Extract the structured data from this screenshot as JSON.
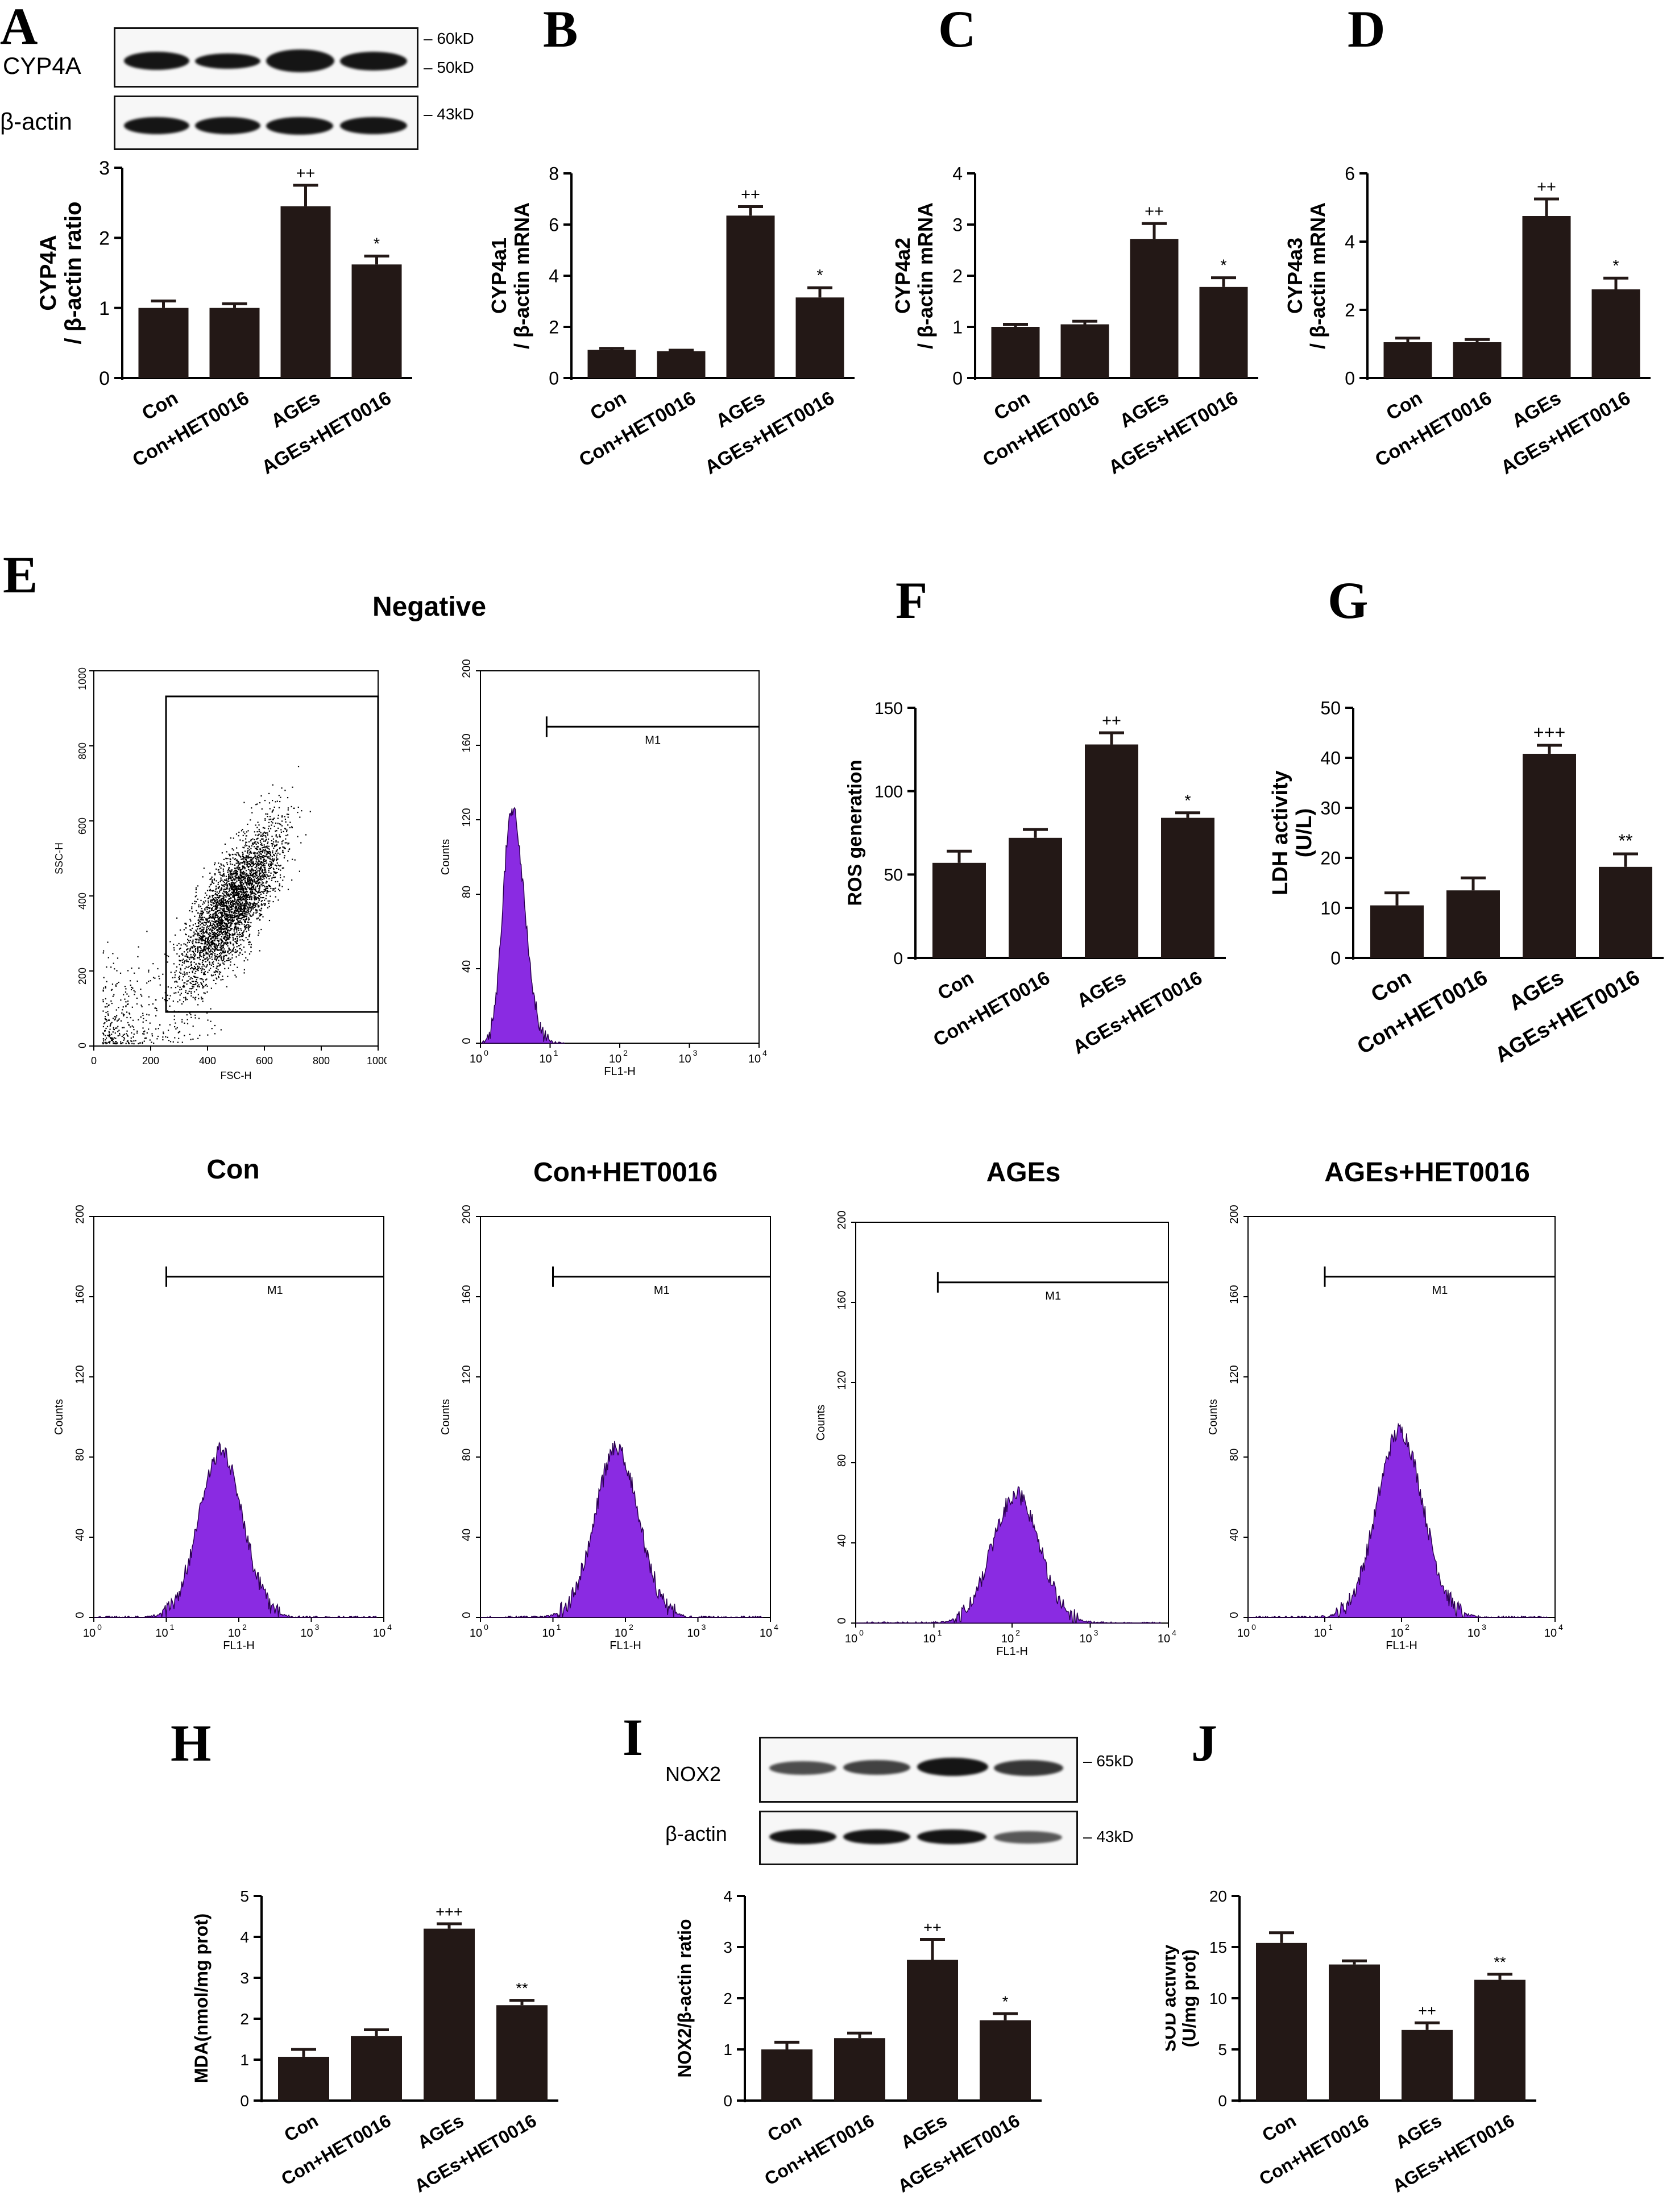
{
  "groups": [
    "Con",
    "Con+HET0016",
    "AGEs",
    "AGEs+HET0016"
  ],
  "letters": {
    "A": "A",
    "B": "B",
    "C": "C",
    "D": "D",
    "E": "E",
    "F": "F",
    "G": "G",
    "H": "H",
    "I": "I",
    "J": "J"
  },
  "blot_A": {
    "target": "CYP4A",
    "loading": "β-actin",
    "mw_top": "60kD",
    "mw_mid": "50kD",
    "mw_load": "43kD"
  },
  "blot_I": {
    "target": "NOX2",
    "loading": "β-actin",
    "mw_top": "65kD",
    "mw_load": "43kD"
  },
  "flow": {
    "negative_title": "Negative",
    "scatter": {
      "xlabel": "FSC-H",
      "ylabel": "SSC-H",
      "ticks": [
        "0",
        "200",
        "400",
        "600",
        "800",
        "1000"
      ]
    },
    "hist": {
      "xlabel": "FL1-H",
      "ylabel": "Counts",
      "gate": "M1",
      "yticks": [
        "0",
        "40",
        "80",
        "120",
        "160",
        "200"
      ],
      "xbase": "10",
      "xexp": [
        "0",
        "1",
        "2",
        "3",
        "4"
      ]
    },
    "titles": [
      "Con",
      "Con+HET0016",
      "AGEs",
      "AGEs+HET0016"
    ],
    "peak_log_fl": {
      "negative": 0.45,
      "Con": 1.75,
      "Con+HET0016": 1.88,
      "AGEs": 2.05,
      "AGEs+HET0016": 1.98
    },
    "peak_counts": {
      "negative": 126,
      "Con": 83,
      "Con+HET0016": 84,
      "AGEs": 64,
      "AGEs+HET0016": 93
    }
  },
  "chart_data": [
    {
      "id": "A",
      "type": "bar",
      "ylabel_lines": [
        "CYP4A",
        "/ β-actin ratio"
      ],
      "categories": [
        "Con",
        "Con+HET0016",
        "AGEs",
        "AGEs+HET0016"
      ],
      "values": [
        1.0,
        1.0,
        2.45,
        1.62
      ],
      "errors": [
        0.1,
        0.06,
        0.3,
        0.12
      ],
      "ylim": [
        0,
        3
      ],
      "yticks": [
        0,
        1,
        2,
        3
      ],
      "annotations": [
        "",
        "",
        "++",
        "*"
      ]
    },
    {
      "id": "B",
      "type": "bar",
      "ylabel_lines": [
        "CYP4a1",
        "/ β-actin mRNA"
      ],
      "categories": [
        "Con",
        "Con+HET0016",
        "AGEs",
        "AGEs+HET0016"
      ],
      "values": [
        1.1,
        1.05,
        6.35,
        3.15
      ],
      "errors": [
        0.06,
        0.04,
        0.35,
        0.38
      ],
      "ylim": [
        0,
        8
      ],
      "yticks": [
        0,
        2,
        4,
        6,
        8
      ],
      "annotations": [
        "",
        "",
        "++",
        "*"
      ]
    },
    {
      "id": "C",
      "type": "bar",
      "ylabel_lines": [
        "CYP4a2",
        "/ β-actin mRNA"
      ],
      "categories": [
        "Con",
        "Con+HET0016",
        "AGEs",
        "AGEs+HET0016"
      ],
      "values": [
        1.0,
        1.05,
        2.72,
        1.78
      ],
      "errors": [
        0.05,
        0.06,
        0.3,
        0.18
      ],
      "ylim": [
        0,
        4
      ],
      "yticks": [
        0,
        1,
        2,
        3,
        4
      ],
      "annotations": [
        "",
        "",
        "++",
        "*"
      ]
    },
    {
      "id": "D",
      "type": "bar",
      "ylabel_lines": [
        "CYP4a3",
        "/ β-actin mRNA"
      ],
      "categories": [
        "Con",
        "Con+HET0016",
        "AGEs",
        "AGEs+HET0016"
      ],
      "values": [
        1.05,
        1.05,
        4.75,
        2.6
      ],
      "errors": [
        0.12,
        0.08,
        0.5,
        0.33
      ],
      "ylim": [
        0,
        6
      ],
      "yticks": [
        0,
        2,
        4,
        6
      ],
      "annotations": [
        "",
        "",
        "++",
        "*"
      ]
    },
    {
      "id": "F",
      "type": "bar",
      "ylabel_lines": [
        "ROS generation"
      ],
      "categories": [
        "Con",
        "Con+HET0016",
        "AGEs",
        "AGEs+HET0016"
      ],
      "values": [
        57,
        72,
        128,
        84
      ],
      "errors": [
        7,
        5,
        7,
        3
      ],
      "ylim": [
        0,
        150
      ],
      "yticks": [
        0,
        50,
        100,
        150
      ],
      "annotations": [
        "",
        "",
        "++",
        "*"
      ]
    },
    {
      "id": "G",
      "type": "bar",
      "ylabel_lines": [
        "LDH activity",
        "(U/L)"
      ],
      "categories": [
        "Con",
        "Con+HET0016",
        "AGEs",
        "AGEs+HET0016"
      ],
      "values": [
        10.5,
        13.5,
        40.8,
        18.2
      ],
      "errors": [
        2.5,
        2.5,
        1.7,
        2.6
      ],
      "ylim": [
        0,
        50
      ],
      "yticks": [
        0,
        10,
        20,
        30,
        40,
        50
      ],
      "annotations": [
        "",
        "",
        "+++",
        "**"
      ]
    },
    {
      "id": "H",
      "type": "bar",
      "ylabel_lines": [
        "MDA(nmol/mg prot)"
      ],
      "categories": [
        "Con",
        "Con+HET0016",
        "AGEs",
        "AGEs+HET0016"
      ],
      "values": [
        1.07,
        1.58,
        4.2,
        2.33
      ],
      "errors": [
        0.18,
        0.15,
        0.12,
        0.12
      ],
      "ylim": [
        0,
        5
      ],
      "yticks": [
        0,
        1,
        2,
        3,
        4,
        5
      ],
      "annotations": [
        "",
        "",
        "+++",
        "**"
      ]
    },
    {
      "id": "I",
      "type": "bar",
      "ylabel_lines": [
        "NOX2/β-actin ratio"
      ],
      "categories": [
        "Con",
        "Con+HET0016",
        "AGEs",
        "AGEs+HET0016"
      ],
      "values": [
        1.0,
        1.22,
        2.75,
        1.57
      ],
      "errors": [
        0.14,
        0.1,
        0.4,
        0.13
      ],
      "ylim": [
        0,
        4
      ],
      "yticks": [
        0,
        1,
        2,
        3,
        4
      ],
      "annotations": [
        "",
        "",
        "++",
        "*"
      ]
    },
    {
      "id": "J",
      "type": "bar",
      "ylabel_lines": [
        "SOD activity",
        "(U/mg prot)"
      ],
      "categories": [
        "Con",
        "Con+HET0016",
        "AGEs",
        "AGEs+HET0016"
      ],
      "values": [
        15.4,
        13.3,
        6.9,
        11.8
      ],
      "errors": [
        1.0,
        0.35,
        0.7,
        0.55
      ],
      "ylim": [
        0,
        20
      ],
      "yticks": [
        0,
        5,
        10,
        15,
        20
      ],
      "annotations": [
        "",
        "",
        "++",
        "**"
      ]
    }
  ]
}
